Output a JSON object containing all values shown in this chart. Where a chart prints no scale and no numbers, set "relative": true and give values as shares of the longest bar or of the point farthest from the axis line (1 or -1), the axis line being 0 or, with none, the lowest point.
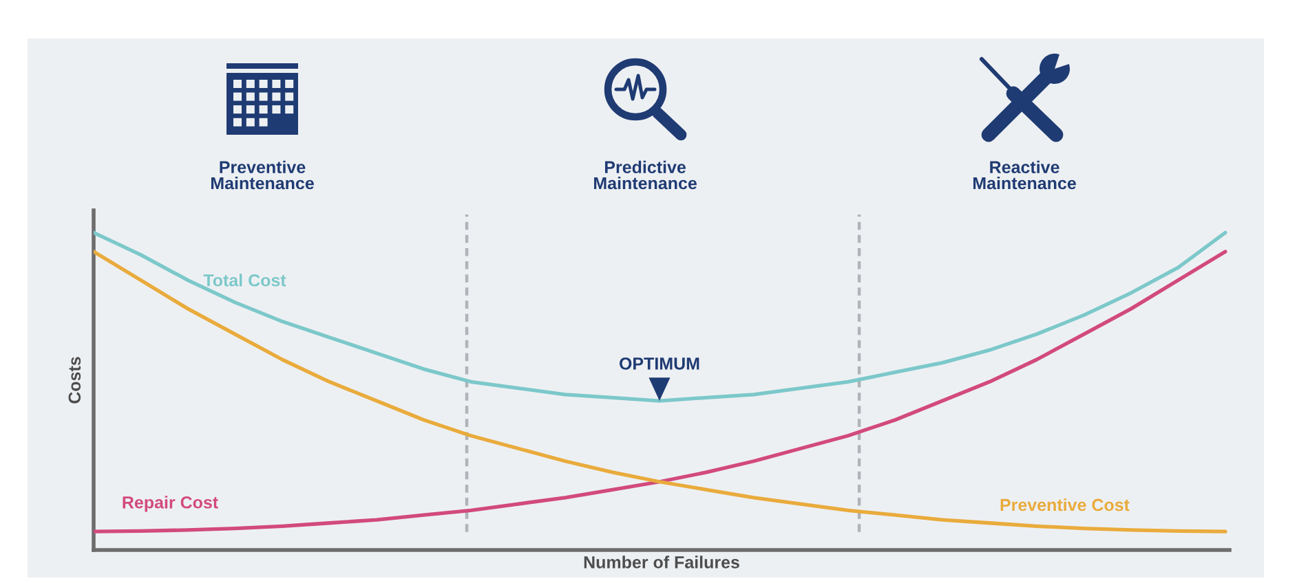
{
  "chart_data": {
    "type": "line",
    "relative": true,
    "xlabel": "Number of Failures",
    "ylabel": "Costs",
    "tick_labels": false,
    "line_style": "solid",
    "categories": [
      null,
      null,
      null,
      null,
      null,
      null,
      null,
      null,
      null,
      null,
      null,
      null,
      null,
      null,
      null,
      null,
      null,
      null,
      null,
      null,
      null,
      null,
      null,
      null,
      null
    ],
    "series": [
      {
        "name": "Total Cost",
        "color": "#7cc8ca",
        "values": [
          1,
          0.93,
          0.85,
          0.78,
          0.72,
          0.67,
          0.62,
          0.57,
          0.53,
          0.51,
          0.49,
          0.48,
          0.47,
          0.48,
          0.49,
          0.51,
          0.53,
          0.56,
          0.59,
          0.63,
          0.68,
          0.74,
          0.81,
          0.89,
          1
        ]
      },
      {
        "name": "Repair Cost",
        "color": "#d24a7c",
        "values": [
          0.058,
          0.06,
          0.063,
          0.068,
          0.075,
          0.085,
          0.095,
          0.11,
          0.125,
          0.145,
          0.165,
          0.19,
          0.215,
          0.245,
          0.28,
          0.32,
          0.36,
          0.41,
          0.47,
          0.53,
          0.6,
          0.68,
          0.76,
          0.85,
          0.94
        ]
      },
      {
        "name": "Preventive Cost",
        "color": "#e9ab3c",
        "values": [
          0.94,
          0.85,
          0.76,
          0.68,
          0.6,
          0.53,
          0.47,
          0.41,
          0.36,
          0.32,
          0.28,
          0.245,
          0.215,
          0.19,
          0.165,
          0.145,
          0.125,
          0.11,
          0.095,
          0.085,
          0.075,
          0.068,
          0.063,
          0.06,
          0.058
        ]
      }
    ],
    "annotations": [
      "Preventive\nMaintenance",
      "Predictive\nMaintenance",
      "Reactive\nMaintenance",
      {
        "text": "OPTIMUM",
        "y": 0.47
      }
    ]
  }
}
